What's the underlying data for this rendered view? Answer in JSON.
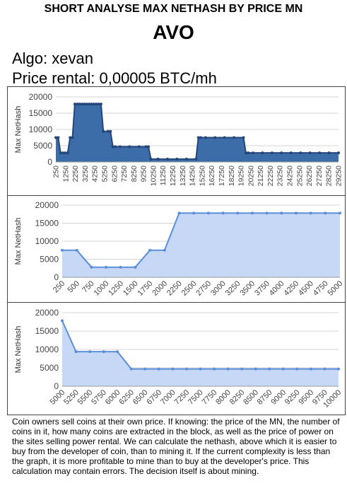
{
  "header": {
    "title": "SHORT ANALYSE MAX NETHASH BY PRICE MN",
    "coin": "AVO",
    "algo": "Algo: xevan",
    "price_rental": "Price rental: 0,00005 BTC/mh"
  },
  "footnote": "Coin owners sell coins at their own price. If knowing: the price of the MN, the number of coins in it, how many coins are extracted in the block, as well as the price of power on the sites selling power rental. We can calculate the nethash, above which it is easier to buy from the developer of coin, than to mining it. If the current complexity is less than the graph, it is more profitable to mine than to buy at the developer's price. This calculation may contain errors. The decision itself is about mining.",
  "chart_data": [
    {
      "type": "area",
      "ylabel": "Max NetHash",
      "ylim": [
        0,
        20000
      ],
      "yticks": [
        "0",
        "5000",
        "10000",
        "15000",
        "20000"
      ],
      "xticks": [
        "250",
        "1250",
        "2250",
        "3250",
        "4250",
        "5250",
        "6250",
        "7250",
        "8250",
        "9250",
        "10250",
        "11250",
        "12250",
        "13250",
        "14250",
        "15250",
        "16250",
        "17250",
        "18250",
        "19250",
        "20250",
        "21250",
        "22250",
        "23250",
        "24250",
        "25250",
        "26250",
        "27250",
        "28250",
        "29250"
      ],
      "x": [
        250,
        500,
        750,
        1000,
        1250,
        1500,
        1750,
        2000,
        2250,
        2500,
        2750,
        3000,
        3250,
        3500,
        3750,
        4000,
        4250,
        4500,
        4750,
        5000,
        5250,
        5750,
        6000,
        6250,
        6500,
        7000,
        8000,
        9000,
        9750,
        10000,
        10250,
        11000,
        12000,
        13000,
        14000,
        15000,
        15250,
        15500,
        16000,
        17000,
        18000,
        19000,
        20000,
        20250,
        20500,
        21000,
        22000,
        23000,
        24000,
        25000,
        26000,
        27000,
        28000,
        29000,
        30000
      ],
      "y": [
        7500,
        7500,
        2800,
        2800,
        2800,
        2800,
        7500,
        7500,
        17800,
        17800,
        17800,
        17800,
        17800,
        17800,
        17800,
        17800,
        17800,
        17800,
        17800,
        17800,
        9400,
        9400,
        9400,
        4700,
        4700,
        4700,
        4700,
        4700,
        4700,
        4700,
        900,
        900,
        900,
        900,
        900,
        900,
        7500,
        7500,
        7500,
        7500,
        7500,
        7500,
        7500,
        2800,
        2800,
        2800,
        2800,
        2800,
        2800,
        2800,
        2800,
        2800,
        2800,
        2800,
        2800
      ],
      "fill": "#3d6da9",
      "line": "#24477a",
      "grid": true
    },
    {
      "type": "area",
      "ylabel": "Max NetHash",
      "ylim": [
        0,
        20000
      ],
      "yticks": [
        "0",
        "5000",
        "10000",
        "15000",
        "20000"
      ],
      "xticks": [
        "250",
        "500",
        "750",
        "1000",
        "1250",
        "1500",
        "1750",
        "2000",
        "2250",
        "2500",
        "2750",
        "3000",
        "3250",
        "3500",
        "3750",
        "4000",
        "4250",
        "4500",
        "4750",
        "5000"
      ],
      "x": [
        250,
        500,
        750,
        1000,
        1250,
        1500,
        1750,
        2000,
        2250,
        2500,
        2750,
        3000,
        3250,
        3500,
        3750,
        4000,
        4250,
        4500,
        4750,
        5000
      ],
      "y": [
        7500,
        7500,
        2800,
        2800,
        2800,
        2800,
        7500,
        7500,
        17800,
        17800,
        17800,
        17800,
        17800,
        17800,
        17800,
        17800,
        17800,
        17800,
        17800,
        17800
      ],
      "fill": "#c6d8f5",
      "line": "#5b8fd9",
      "grid": true
    },
    {
      "type": "area",
      "ylabel": "Max NetHash",
      "ylim": [
        0,
        20000
      ],
      "yticks": [
        "0",
        "5000",
        "10000",
        "15000",
        "20000"
      ],
      "xticks": [
        "5000",
        "5250",
        "5500",
        "5750",
        "6000",
        "6250",
        "6500",
        "6750",
        "7000",
        "7250",
        "7500",
        "7750",
        "8000",
        "8250",
        "8500",
        "8750",
        "9000",
        "9250",
        "9500",
        "9750",
        "10000"
      ],
      "x": [
        5000,
        5250,
        5500,
        5750,
        6000,
        6250,
        6500,
        6750,
        7000,
        7250,
        7500,
        7750,
        8000,
        8250,
        8500,
        8750,
        9000,
        9250,
        9500,
        9750,
        10000
      ],
      "y": [
        17800,
        9400,
        9400,
        9400,
        9400,
        4700,
        4700,
        4700,
        4700,
        4700,
        4700,
        4700,
        4700,
        4700,
        4700,
        4700,
        4700,
        4700,
        4700,
        4700,
        4700
      ],
      "fill": "#c6d8f5",
      "line": "#5b8fd9",
      "grid": true
    }
  ]
}
